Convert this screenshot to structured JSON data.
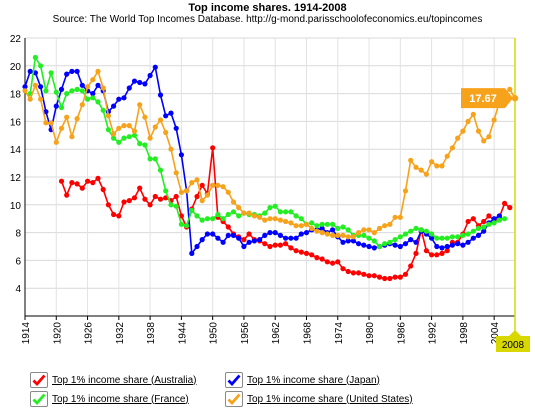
{
  "header": {
    "title": "Top income shares. 1914-2008",
    "subtitle": "Source: The World Top Incomes Database. http://g-mond.parisschoolofeconomics.eu/topincomes"
  },
  "highlight": {
    "value_label": "17.67",
    "year_label": "2008",
    "color": "#f7a21b"
  },
  "legend": {
    "items": [
      {
        "label": "Top 1% income share (Australia)",
        "color": "#ff0000"
      },
      {
        "label": "Top 1% income share (Japan)",
        "color": "#0000ff"
      },
      {
        "label": "Top 1% income share (France)",
        "color": "#22ee22"
      },
      {
        "label": "Top 1% income share (United States)",
        "color": "#f7a21b"
      }
    ]
  },
  "chart_data": {
    "type": "line",
    "title": "Top income shares. 1914-2008",
    "xlabel": "",
    "ylabel": "",
    "xlim": [
      1914,
      2008
    ],
    "ylim": [
      2,
      22
    ],
    "xticks": [
      "1914",
      "1920",
      "1926",
      "1932",
      "1938",
      "1944",
      "1950",
      "1956",
      "1962",
      "1968",
      "1974",
      "1980",
      "1986",
      "1992",
      "1998",
      "2004"
    ],
    "yticks": [
      "4",
      "6",
      "8",
      "10",
      "12",
      "14",
      "16",
      "18",
      "20",
      "22"
    ],
    "grid": true,
    "series": [
      {
        "name": "Top 1% income share (Australia)",
        "color": "#ff0000",
        "x": [
          1921,
          1922,
          1923,
          1924,
          1925,
          1926,
          1927,
          1928,
          1929,
          1930,
          1931,
          1932,
          1933,
          1934,
          1935,
          1936,
          1937,
          1938,
          1939,
          1940,
          1941,
          1942,
          1943,
          1944,
          1945,
          1946,
          1947,
          1948,
          1949,
          1950,
          1951,
          1952,
          1953,
          1954,
          1955,
          1956,
          1957,
          1958,
          1959,
          1960,
          1961,
          1962,
          1963,
          1964,
          1965,
          1966,
          1967,
          1968,
          1969,
          1970,
          1971,
          1972,
          1973,
          1974,
          1975,
          1976,
          1977,
          1978,
          1979,
          1980,
          1981,
          1982,
          1983,
          1984,
          1985,
          1986,
          1987,
          1988,
          1989,
          1990,
          1991,
          1992,
          1993,
          1994,
          1995,
          1996,
          1997,
          1998,
          1999,
          2000,
          2001,
          2002,
          2003,
          2004,
          2005,
          2006,
          2007
        ],
        "values": [
          11.7,
          10.7,
          11.6,
          11.5,
          11.2,
          11.7,
          11.6,
          11.9,
          11.1,
          10.0,
          9.3,
          9.2,
          10.2,
          10.3,
          10.5,
          11.2,
          10.4,
          10.0,
          10.6,
          10.4,
          10.5,
          10.3,
          10.6,
          9.2,
          8.4,
          9.7,
          10.6,
          11.4,
          10.8,
          14.1,
          9.1,
          8.8,
          8.4,
          7.9,
          7.7,
          7.5,
          7.9,
          7.5,
          7.4,
          7.2,
          7.0,
          7.1,
          7.1,
          7.2,
          6.9,
          6.7,
          6.6,
          6.5,
          6.4,
          6.2,
          6.1,
          5.9,
          5.8,
          5.9,
          5.4,
          5.2,
          5.1,
          5.1,
          5.0,
          4.9,
          4.9,
          4.8,
          4.7,
          4.7,
          4.8,
          4.8,
          5.0,
          5.6,
          6.5,
          8.2,
          6.7,
          6.4,
          6.4,
          6.5,
          6.7,
          7.3,
          7.3,
          7.9,
          8.8,
          9.0,
          8.5,
          8.8,
          9.2,
          8.9,
          9.1,
          10.1,
          9.8
        ]
      },
      {
        "name": "Top 1% income share (Japan)",
        "color": "#0000ff",
        "x": [
          1914,
          1915,
          1916,
          1917,
          1918,
          1919,
          1920,
          1921,
          1922,
          1923,
          1924,
          1925,
          1926,
          1927,
          1928,
          1929,
          1930,
          1931,
          1932,
          1933,
          1934,
          1935,
          1936,
          1937,
          1938,
          1939,
          1940,
          1941,
          1942,
          1943,
          1944,
          1945,
          1946,
          1947,
          1948,
          1949,
          1950,
          1951,
          1952,
          1953,
          1954,
          1955,
          1956,
          1957,
          1958,
          1959,
          1960,
          1961,
          1962,
          1963,
          1964,
          1965,
          1966,
          1967,
          1968,
          1969,
          1970,
          1971,
          1972,
          1973,
          1974,
          1975,
          1976,
          1977,
          1978,
          1979,
          1980,
          1981,
          1982,
          1983,
          1984,
          1985,
          1986,
          1987,
          1988,
          1989,
          1990,
          1991,
          1992,
          1993,
          1994,
          1995,
          1996,
          1997,
          1998,
          1999,
          2000,
          2001,
          2002,
          2003,
          2004,
          2005
        ],
        "values": [
          18.5,
          19.6,
          19.5,
          18.5,
          16.7,
          15.4,
          17.1,
          18.3,
          19.4,
          19.6,
          19.6,
          18.6,
          18.2,
          18.0,
          18.6,
          18.2,
          16.7,
          17.1,
          17.6,
          17.7,
          18.4,
          18.9,
          18.8,
          18.7,
          19.3,
          19.9,
          17.9,
          16.4,
          16.6,
          15.5,
          13.6,
          11.0,
          6.5,
          7.0,
          7.5,
          7.9,
          7.9,
          7.6,
          7.3,
          7.8,
          7.8,
          7.6,
          7.0,
          7.3,
          7.4,
          7.5,
          7.8,
          8.0,
          8.0,
          7.8,
          7.6,
          7.6,
          7.6,
          7.9,
          8.0,
          8.2,
          8.2,
          8.3,
          8.0,
          8.2,
          7.7,
          7.3,
          7.4,
          7.4,
          7.2,
          7.1,
          7.0,
          6.9,
          7.0,
          7.1,
          7.2,
          7.1,
          7.0,
          7.2,
          7.5,
          7.3,
          8.1,
          7.9,
          7.6,
          7.0,
          6.9,
          7.0,
          7.1,
          7.2,
          7.1,
          7.3,
          7.6,
          7.8,
          8.1,
          8.7,
          9.0,
          9.2
        ]
      },
      {
        "name": "Top 1% income share (France)",
        "color": "#22ee22",
        "x": [
          1915,
          1916,
          1917,
          1918,
          1919,
          1920,
          1921,
          1922,
          1923,
          1924,
          1925,
          1926,
          1927,
          1928,
          1929,
          1930,
          1931,
          1932,
          1933,
          1934,
          1935,
          1936,
          1937,
          1938,
          1939,
          1940,
          1941,
          1942,
          1943,
          1944,
          1945,
          1946,
          1947,
          1948,
          1949,
          1950,
          1951,
          1952,
          1953,
          1954,
          1955,
          1956,
          1957,
          1958,
          1959,
          1960,
          1961,
          1962,
          1963,
          1964,
          1965,
          1966,
          1967,
          1968,
          1969,
          1970,
          1971,
          1972,
          1973,
          1974,
          1975,
          1976,
          1977,
          1978,
          1979,
          1980,
          1981,
          1982,
          1983,
          1984,
          1985,
          1986,
          1987,
          1988,
          1989,
          1990,
          1991,
          1992,
          1993,
          1994,
          1995,
          1996,
          1997,
          1998,
          1999,
          2000,
          2001,
          2002,
          2003,
          2004,
          2005,
          2006
        ],
        "values": [
          18.0,
          20.6,
          20.0,
          18.2,
          19.5,
          18.1,
          17.0,
          18.0,
          18.2,
          18.3,
          18.2,
          17.6,
          17.7,
          17.4,
          16.8,
          15.4,
          14.8,
          14.5,
          14.8,
          14.9,
          15.0,
          14.4,
          14.3,
          13.3,
          13.3,
          12.5,
          11.0,
          10.0,
          9.9,
          8.6,
          8.5,
          9.6,
          9.2,
          8.9,
          9.0,
          9.0,
          9.3,
          9.0,
          9.3,
          9.5,
          9.2,
          9.4,
          9.3,
          9.3,
          9.2,
          9.4,
          9.8,
          9.9,
          9.5,
          9.5,
          9.5,
          9.2,
          9.0,
          8.6,
          8.7,
          8.5,
          8.6,
          8.6,
          8.6,
          8.3,
          8.4,
          8.2,
          7.8,
          7.8,
          7.8,
          7.6,
          7.4,
          7.0,
          7.2,
          7.3,
          7.5,
          7.7,
          7.9,
          8.1,
          8.3,
          8.2,
          8.1,
          7.9,
          7.6,
          7.6,
          7.6,
          7.7,
          7.7,
          7.8,
          7.9,
          8.1,
          8.3,
          8.4,
          8.6,
          8.7,
          8.9,
          9.0
        ]
      },
      {
        "name": "Top 1% income share (United States)",
        "color": "#f7a21b",
        "x": [
          1914,
          1915,
          1916,
          1917,
          1918,
          1919,
          1920,
          1921,
          1922,
          1923,
          1924,
          1925,
          1926,
          1927,
          1928,
          1929,
          1930,
          1931,
          1932,
          1933,
          1934,
          1935,
          1936,
          1937,
          1938,
          1939,
          1940,
          1941,
          1942,
          1943,
          1944,
          1945,
          1946,
          1947,
          1948,
          1949,
          1950,
          1951,
          1952,
          1953,
          1954,
          1955,
          1956,
          1957,
          1958,
          1959,
          1960,
          1961,
          1962,
          1963,
          1964,
          1965,
          1966,
          1967,
          1968,
          1969,
          1970,
          1971,
          1972,
          1973,
          1974,
          1975,
          1976,
          1977,
          1978,
          1979,
          1980,
          1981,
          1982,
          1983,
          1984,
          1985,
          1986,
          1987,
          1988,
          1989,
          1990,
          1991,
          1992,
          1993,
          1994,
          1995,
          1996,
          1997,
          1998,
          1999,
          2000,
          2001,
          2002,
          2003,
          2004,
          2005,
          2006,
          2007,
          2008
        ],
        "values": [
          18.2,
          17.6,
          18.6,
          17.6,
          15.9,
          15.9,
          14.5,
          15.5,
          16.3,
          14.9,
          16.2,
          17.2,
          18.5,
          19.0,
          19.6,
          18.4,
          16.4,
          15.1,
          15.5,
          15.7,
          15.7,
          15.3,
          17.2,
          16.3,
          14.8,
          15.6,
          16.1,
          15.2,
          14.0,
          12.3,
          10.9,
          11.0,
          11.6,
          11.8,
          10.3,
          10.7,
          11.4,
          11.4,
          11.3,
          10.9,
          10.2,
          9.8,
          9.4,
          9.4,
          9.2,
          9.1,
          8.9,
          9.0,
          9.0,
          8.9,
          8.8,
          8.7,
          8.5,
          8.5,
          8.6,
          8.3,
          8.1,
          8.0,
          7.9,
          7.8,
          7.8,
          7.8,
          7.7,
          7.7,
          8.0,
          8.2,
          8.2,
          8.0,
          8.3,
          8.5,
          8.6,
          9.1,
          9.1,
          11.0,
          13.2,
          12.7,
          12.5,
          12.2,
          13.1,
          12.8,
          12.8,
          13.5,
          14.1,
          14.8,
          15.3,
          16.0,
          16.5,
          15.3,
          14.6,
          14.9,
          16.1,
          17.4,
          18.0,
          18.3,
          17.67
        ]
      }
    ]
  }
}
